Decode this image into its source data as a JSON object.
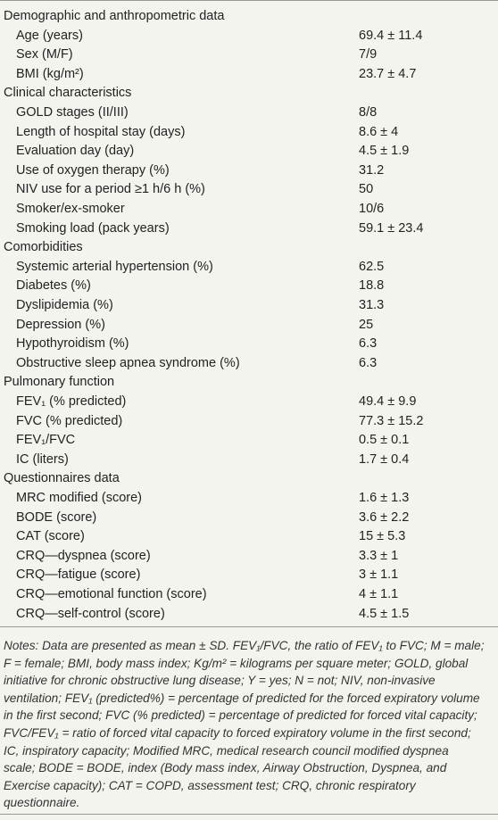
{
  "table": {
    "sections": [
      {
        "title": "Demographic and anthropometric data",
        "rows": [
          [
            "Age (years)",
            "69.4 ± 11.4"
          ],
          [
            "Sex (M/F)",
            "7/9"
          ],
          [
            "BMI (kg/m²)",
            "23.7 ± 4.7"
          ]
        ]
      },
      {
        "title": "Clinical characteristics",
        "rows": [
          [
            "GOLD stages (II/III)",
            "8/8"
          ],
          [
            "Length of hospital stay (days)",
            "8.6 ± 4"
          ],
          [
            "Evaluation day (day)",
            "4.5 ± 1.9"
          ],
          [
            "Use of oxygen therapy (%)",
            "31.2"
          ],
          [
            "NIV use for a period ≥1 h/6 h (%)",
            "50"
          ],
          [
            "Smoker/ex-smoker",
            "10/6"
          ],
          [
            "Smoking load (pack years)",
            "59.1 ± 23.4"
          ]
        ]
      },
      {
        "title": "Comorbidities",
        "rows": [
          [
            "Systemic arterial hypertension (%)",
            "62.5"
          ],
          [
            "Diabetes (%)",
            "18.8"
          ],
          [
            "Dyslipidemia (%)",
            "31.3"
          ],
          [
            "Depression (%)",
            "25"
          ],
          [
            "Hypothyroidism (%)",
            "6.3"
          ],
          [
            "Obstructive sleep apnea syndrome (%)",
            "6.3"
          ]
        ]
      },
      {
        "title": "Pulmonary function",
        "rows": [
          [
            "FEV₁ (% predicted)",
            "49.4 ± 9.9"
          ],
          [
            "FVC (% predicted)",
            "77.3 ± 15.2"
          ],
          [
            "FEV₁/FVC",
            "0.5 ± 0.1"
          ],
          [
            "IC (liters)",
            "1.7 ± 0.4"
          ]
        ]
      },
      {
        "title": "Questionnaires data",
        "rows": [
          [
            "MRC modified (score)",
            "1.6 ± 1.3"
          ],
          [
            "BODE (score)",
            "3.6 ± 2.2"
          ],
          [
            "CAT (score)",
            "15 ± 5.3"
          ],
          [
            "CRQ—dyspnea (score)",
            "3.3 ± 1"
          ],
          [
            "CRQ—fatigue (score)",
            "3 ± 1.1"
          ],
          [
            "CRQ—emotional function (score)",
            "4 ± 1.1"
          ],
          [
            "CRQ—self-control (score)",
            "4.5 ± 1.5"
          ]
        ]
      }
    ]
  },
  "notes": [
    "Notes: Data are presented as mean ± SD. FEV₁/FVC, the ratio of FEV₁ to FVC; M = male;",
    "F = female; BMI, body mass index; Kg/m² = kilograms per square meter; GOLD, global",
    "initiative for chronic obstructive lung disease; Y = yes; N = not; NIV, non-invasive",
    "ventilation; FEV₁ (predicted%) = percentage of predicted for the forced expiratory volume",
    "in the first second; FVC (% predicted) = percentage of predicted for forced vital capacity;",
    "FVC/FEV₁ = ratio of forced vital capacity to forced expiratory volume in the first second;",
    "IC, inspiratory capacity; Modified MRC, medical research council modified dyspnea",
    "scale; BODE = BODE, index (Body mass index, Airway Obstruction, Dyspnea, and",
    "Exercise capacity); CAT = COPD, assessment test; CRQ, chronic respiratory",
    "questionnaire."
  ]
}
